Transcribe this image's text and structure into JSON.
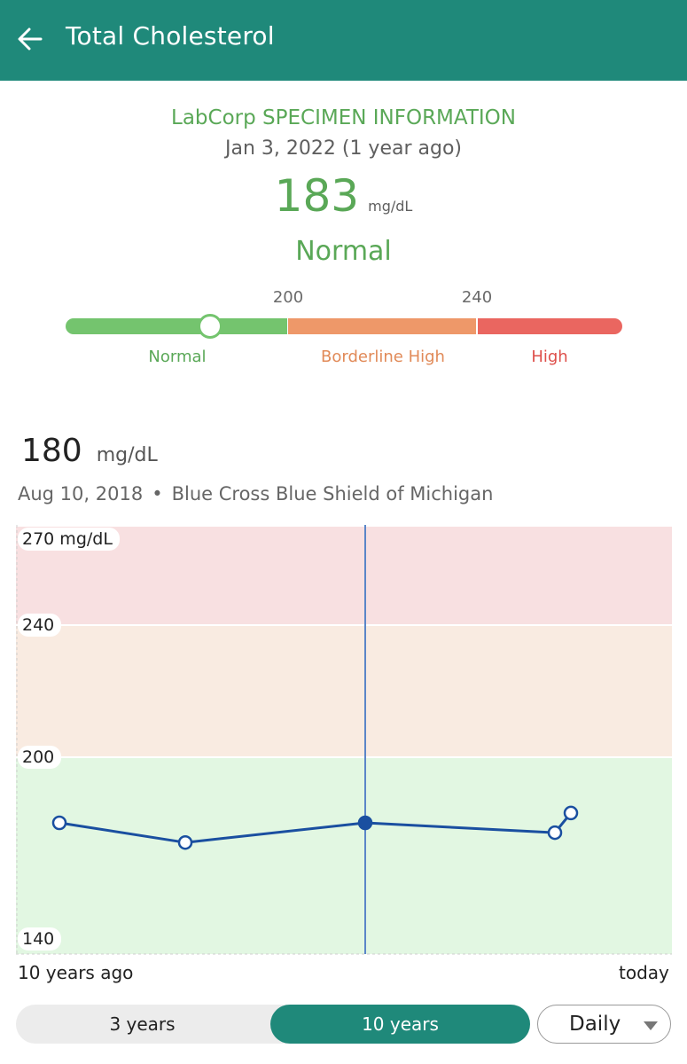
{
  "header": {
    "title": "Total Cholesterol",
    "back_icon": "arrow-left-icon",
    "background_color": "#1f897a"
  },
  "latest": {
    "source_title": "LabCorp SPECIMEN INFORMATION",
    "date_text": "Jan 3, 2022 (1 year ago)",
    "value": "183",
    "unit": "mg/dL",
    "status": "Normal",
    "status_color": "#5aa857"
  },
  "range_scale": {
    "ticks": [
      "200",
      "240"
    ],
    "labels": [
      "Normal",
      "Borderline High",
      "High"
    ],
    "marker_value": 183,
    "colors": {
      "normal": "#74c46e",
      "borderline": "#ee9869",
      "high": "#ea6660"
    }
  },
  "selected": {
    "value": "180",
    "unit": "mg/dL",
    "date": "Aug 10, 2018",
    "separator": "•",
    "source": "Blue Cross Blue Shield of Michigan"
  },
  "chart_data": {
    "type": "line",
    "y_labels": [
      "270 mg/dL",
      "240",
      "200",
      "140"
    ],
    "ylim": [
      140,
      270
    ],
    "bands": [
      {
        "from": 140,
        "to": 200,
        "color": "#e2f7e2"
      },
      {
        "from": 200,
        "to": 240,
        "color": "#f9ebe1"
      },
      {
        "from": 240,
        "to": 270,
        "color": "#f8e0e1"
      }
    ],
    "series": [
      {
        "values": [
          180,
          174,
          180,
          177,
          183
        ]
      }
    ],
    "selected_index": 2,
    "x_labels": [
      "10 years ago",
      "today"
    ],
    "line_color": "#1a4fa0"
  },
  "controls": {
    "range_options": [
      "3 years",
      "10 years"
    ],
    "active_range": "10 years",
    "interval": "Daily",
    "accent_color": "#1f897a"
  }
}
